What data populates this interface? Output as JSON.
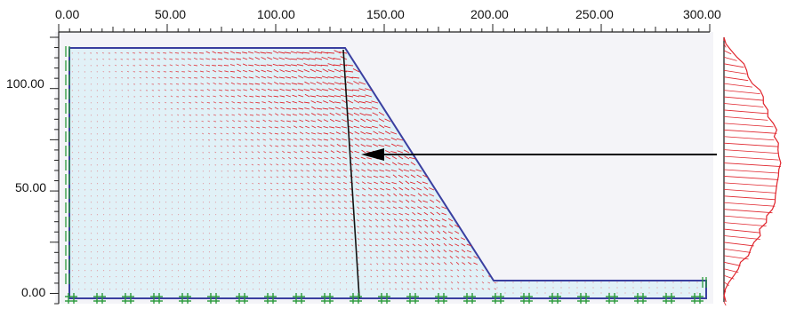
{
  "x_ruler": {
    "labels": [
      "0.00",
      "50.00",
      "100.00",
      "150.00",
      "200.00",
      "250.00",
      "300.00"
    ]
  },
  "y_ruler": {
    "labels": [
      "100.00",
      "50.00",
      "0.00"
    ]
  },
  "colors": {
    "background": "#ffffff",
    "canvas": "#f4f4f8",
    "soil_fill": "#e1f1f7",
    "boundary": "#3a3fa0",
    "vectors": "#e0242c",
    "supports": "#2a9a3a",
    "arrow": "#000000",
    "ruler": "#222222"
  },
  "icons": {
    "support": "fixed-support-icon",
    "load_arrow": "arrow-left-icon"
  }
}
